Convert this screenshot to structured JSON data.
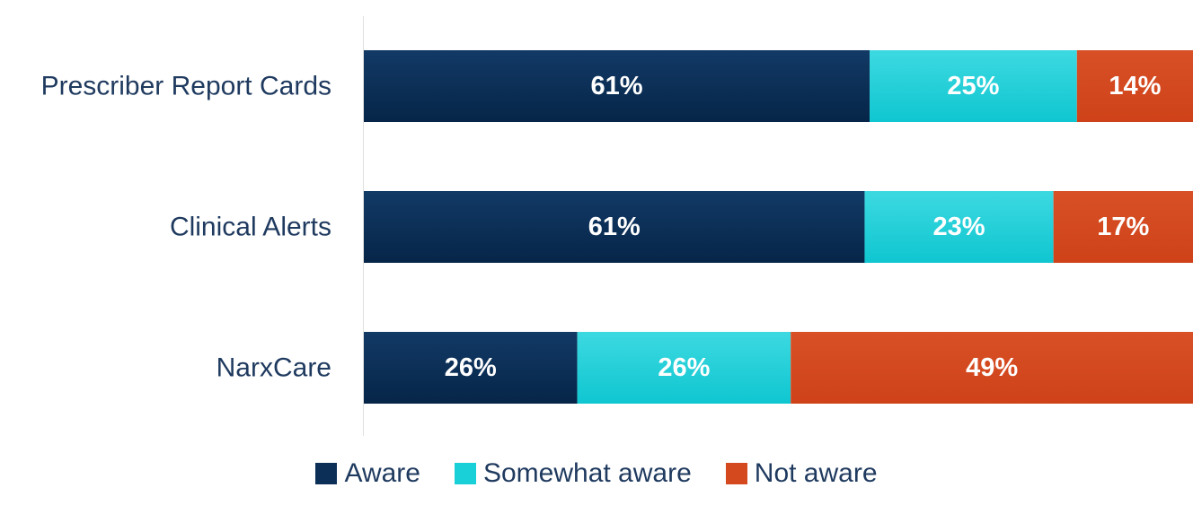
{
  "chart_data": {
    "type": "bar",
    "orientation": "horizontal",
    "stacked": true,
    "title": "",
    "xlabel": "",
    "ylabel": "",
    "xlim": [
      0,
      100
    ],
    "categories": [
      "Prescriber Report Cards",
      "Clinical Alerts",
      "NarxCare"
    ],
    "series": [
      {
        "name": "Aware",
        "color": "#0c2f57",
        "values": [
          61,
          61,
          26
        ]
      },
      {
        "name": "Somewhat aware",
        "color": "#19cfd8",
        "values": [
          25,
          23,
          26
        ]
      },
      {
        "name": "Not aware",
        "color": "#d5491f",
        "values": [
          14,
          17,
          49
        ]
      }
    ],
    "data_labels": [
      [
        "61%",
        "25%",
        "14%"
      ],
      [
        "61%",
        "23%",
        "17%"
      ],
      [
        "26%",
        "26%",
        "49%"
      ]
    ],
    "legend_position": "bottom-center",
    "grid": false
  }
}
